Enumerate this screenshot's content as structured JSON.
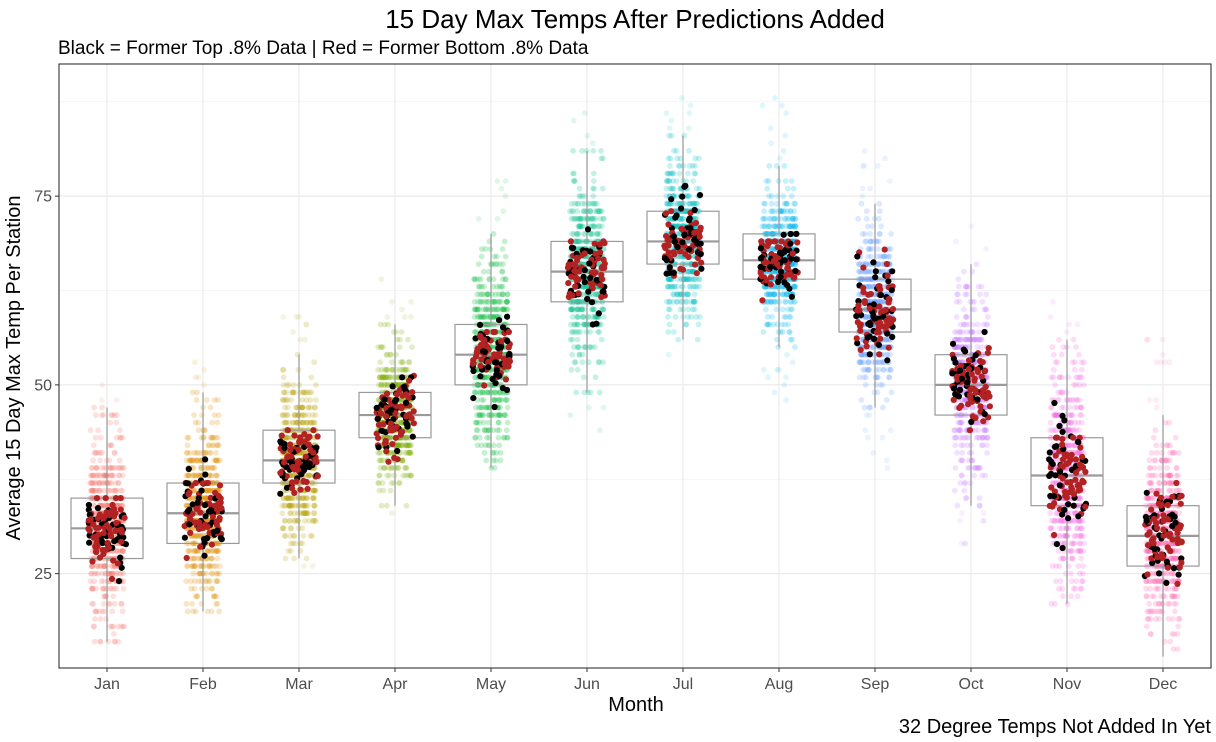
{
  "chart_data": {
    "type": "box+jitter",
    "title": "15 Day Max Temps After Predictions Added",
    "subtitle": "Black = Former Top .8% Data | Red = Former Bottom .8% Data",
    "caption": "32 Degree Temps Not Added In Yet",
    "xlabel": "Month",
    "ylabel": "Average 15 Day Max Temp Per Station",
    "ylim": [
      12.5,
      92.5
    ],
    "y_ticks": [
      25,
      50,
      75
    ],
    "grid": true,
    "categories": [
      "Jan",
      "Feb",
      "Mar",
      "Apr",
      "May",
      "Jun",
      "Jul",
      "Aug",
      "Sep",
      "Oct",
      "Nov",
      "Dec"
    ],
    "month_colors": [
      "#f8766d",
      "#de8c00",
      "#b79f00",
      "#7cae00",
      "#00ba38",
      "#00c08b",
      "#00bfc4",
      "#00b4f0",
      "#619cff",
      "#c77cff",
      "#f564e3",
      "#ff64b0"
    ],
    "highlight_colors": {
      "top": "#000000",
      "bottom": "#b22222"
    },
    "boxes": [
      {
        "q1": 27,
        "median": 31,
        "q3": 35,
        "whisker_low": 16,
        "whisker_high": 47,
        "min": 16,
        "max": 55
      },
      {
        "q1": 29,
        "median": 33,
        "q3": 37,
        "whisker_low": 20,
        "whisker_high": 49,
        "min": 20,
        "max": 54
      },
      {
        "q1": 37,
        "median": 40,
        "q3": 44,
        "whisker_low": 27,
        "whisker_high": 54,
        "min": 26,
        "max": 60
      },
      {
        "q1": 43,
        "median": 46,
        "q3": 49,
        "whisker_low": 34,
        "whisker_high": 58,
        "min": 32,
        "max": 65
      },
      {
        "q1": 50,
        "median": 54,
        "q3": 58,
        "whisker_low": 39,
        "whisker_high": 70,
        "min": 37,
        "max": 77
      },
      {
        "q1": 61,
        "median": 65,
        "q3": 69,
        "whisker_low": 49,
        "whisker_high": 81,
        "min": 44,
        "max": 87
      },
      {
        "q1": 66,
        "median": 69,
        "q3": 73,
        "whisker_low": 56,
        "whisker_high": 83,
        "min": 54,
        "max": 90
      },
      {
        "q1": 64,
        "median": 66.5,
        "q3": 70,
        "whisker_low": 55,
        "whisker_high": 79,
        "min": 44,
        "max": 88
      },
      {
        "q1": 57,
        "median": 60,
        "q3": 64,
        "whisker_low": 47,
        "whisker_high": 74,
        "min": 39,
        "max": 82
      },
      {
        "q1": 46,
        "median": 50,
        "q3": 54,
        "whisker_low": 34,
        "whisker_high": 66,
        "min": 28,
        "max": 71
      },
      {
        "q1": 34,
        "median": 38,
        "q3": 43,
        "whisker_low": 21,
        "whisker_high": 56,
        "min": 21,
        "max": 63
      },
      {
        "q1": 26,
        "median": 30,
        "q3": 34,
        "whisker_low": 14,
        "whisker_high": 46,
        "min": 14,
        "max": 57
      }
    ],
    "highlight_ranges": [
      {
        "top": [
          23,
          35
        ],
        "bottom": [
          23,
          35
        ]
      },
      {
        "top": [
          27,
          42
        ],
        "bottom": [
          25,
          37
        ]
      },
      {
        "top": [
          34,
          44
        ],
        "bottom": [
          34,
          44
        ]
      },
      {
        "top": [
          38,
          51
        ],
        "bottom": [
          39,
          52
        ]
      },
      {
        "top": [
          47,
          60
        ],
        "bottom": [
          47,
          57
        ]
      },
      {
        "top": [
          58,
          71
        ],
        "bottom": [
          58,
          69
        ]
      },
      {
        "top": [
          63,
          78
        ],
        "bottom": [
          63,
          73
        ]
      },
      {
        "top": [
          60,
          73
        ],
        "bottom": [
          60,
          69
        ]
      },
      {
        "top": [
          53,
          67
        ],
        "bottom": [
          53,
          68
        ]
      },
      {
        "top": [
          43,
          57
        ],
        "bottom": [
          44,
          56
        ]
      },
      {
        "top": [
          28,
          48
        ],
        "bottom": [
          28,
          43
        ]
      },
      {
        "top": [
          22,
          38
        ],
        "bottom": [
          22,
          37
        ]
      }
    ]
  }
}
